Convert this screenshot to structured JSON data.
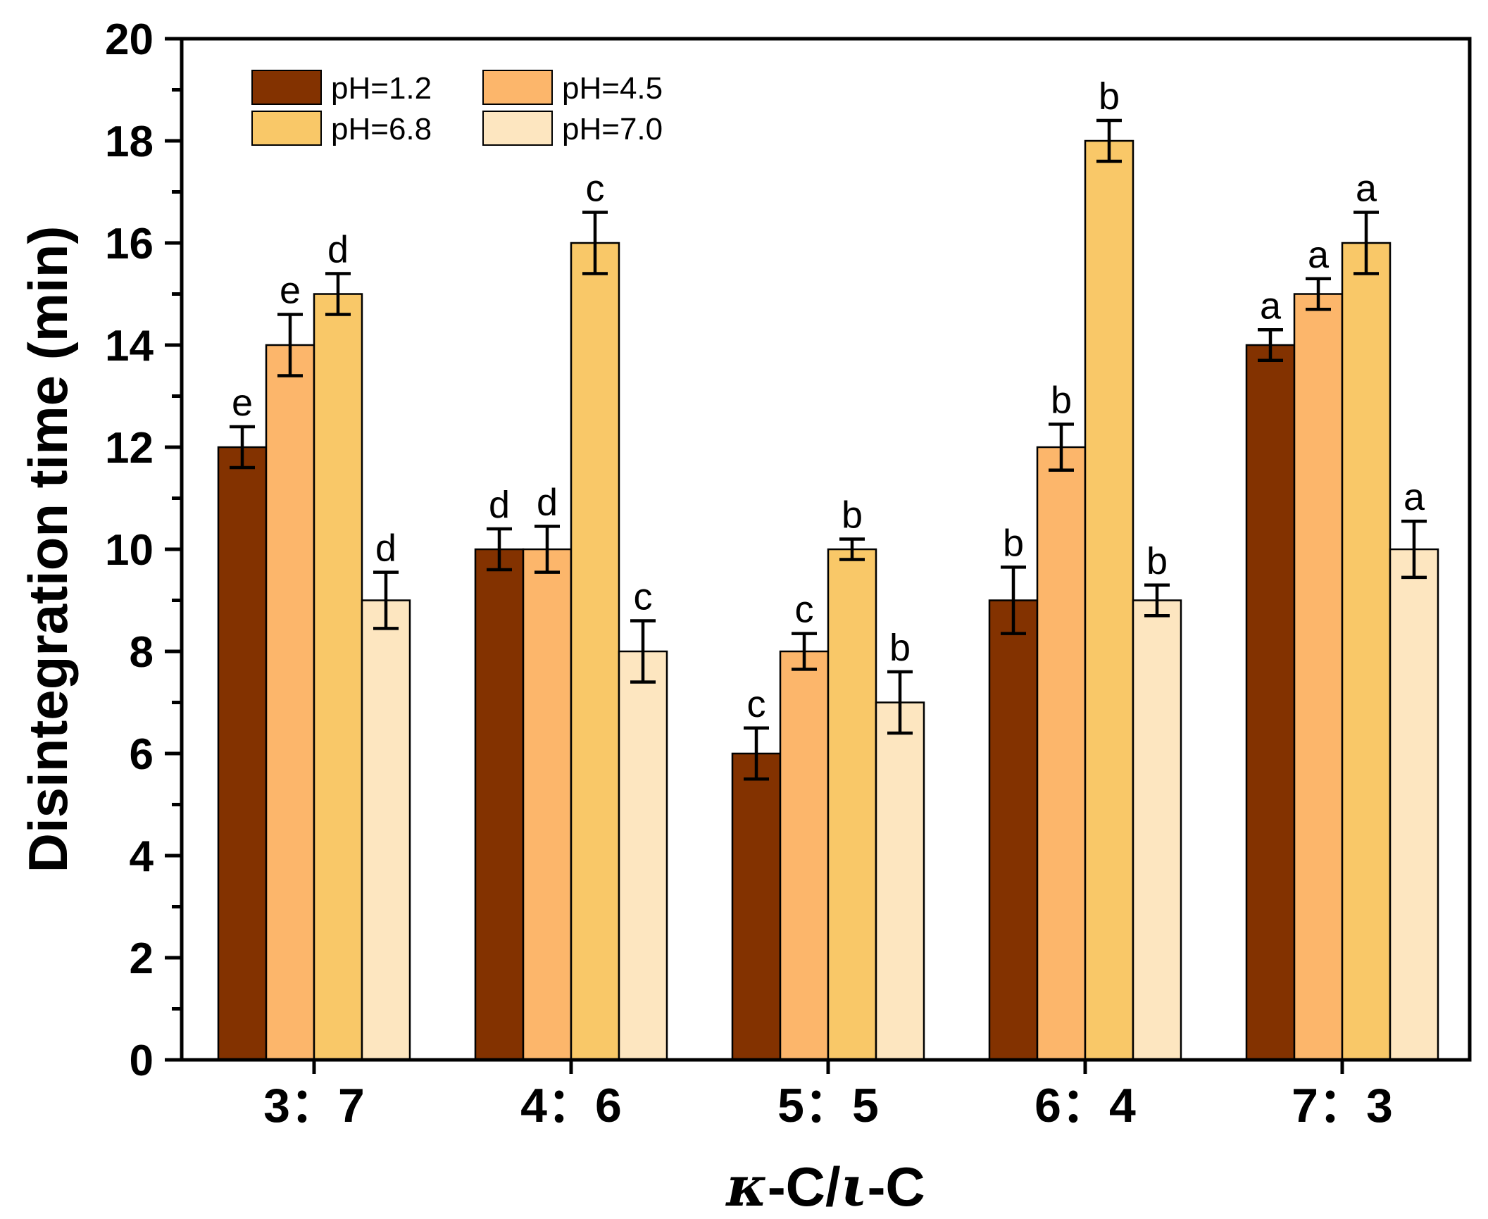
{
  "chart_data": {
    "type": "bar",
    "title": "",
    "xlabel_parts": [
      "κ",
      "-C/",
      "ι",
      "-C"
    ],
    "ylabel": "Disintegration time (min)",
    "ylim": [
      0,
      20
    ],
    "yticks": [
      0,
      2,
      4,
      6,
      8,
      10,
      12,
      14,
      16,
      18,
      20
    ],
    "categories": [
      "3：7",
      "4：6",
      "5：5",
      "6：4",
      "7：3"
    ],
    "legend_position": "top-left",
    "series": [
      {
        "name": "pH=1.2",
        "color": "#833200",
        "values": [
          12,
          10,
          6,
          9,
          14
        ],
        "errors": [
          0.4,
          0.4,
          0.5,
          0.65,
          0.3
        ],
        "labels": [
          "e",
          "d",
          "c",
          "b",
          "a"
        ]
      },
      {
        "name": "pH=4.5",
        "color": "#FCB66B",
        "values": [
          14,
          10,
          8,
          12,
          15
        ],
        "errors": [
          0.6,
          0.45,
          0.35,
          0.45,
          0.3
        ],
        "labels": [
          "e",
          "d",
          "c",
          "b",
          "a"
        ]
      },
      {
        "name": "pH=6.8",
        "color": "#F9C868",
        "values": [
          15,
          16,
          10,
          18,
          16
        ],
        "errors": [
          0.4,
          0.6,
          0.2,
          0.4,
          0.6
        ],
        "labels": [
          "d",
          "c",
          "b",
          "b",
          "a"
        ]
      },
      {
        "name": "pH=7.0",
        "color": "#FDE6C0",
        "values": [
          9,
          8,
          7,
          9,
          10
        ],
        "errors": [
          0.55,
          0.6,
          0.6,
          0.3,
          0.55
        ],
        "labels": [
          "d",
          "c",
          "b",
          "b",
          "a"
        ]
      }
    ]
  }
}
